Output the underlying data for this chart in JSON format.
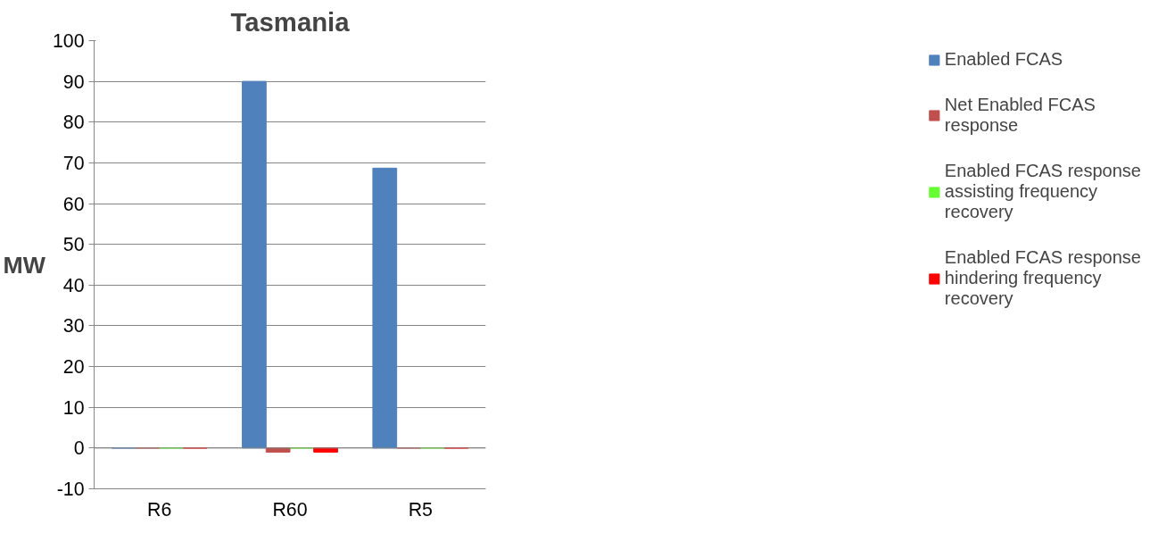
{
  "chart_data": {
    "type": "bar",
    "title": "Tasmania",
    "ylabel": "MW",
    "categories": [
      "R6",
      "R60",
      "R5"
    ],
    "series": [
      {
        "name": "Enabled FCAS",
        "color": "#4f81bd",
        "values": [
          0,
          90,
          68.7
        ]
      },
      {
        "name": "Net Enabled FCAS response",
        "color": "#c0504d",
        "values": [
          0,
          -1,
          0
        ]
      },
      {
        "name": "Enabled FCAS response assisting frequency recovery",
        "color": "#66ff33",
        "values": [
          0,
          0,
          0
        ]
      },
      {
        "name": "Enabled FCAS response hindering frequency recovery",
        "color": "#ff0000",
        "values": [
          0,
          -1,
          0
        ]
      }
    ],
    "ylim": [
      -10,
      100
    ],
    "yticks": [
      -10,
      0,
      10,
      20,
      30,
      40,
      50,
      60,
      70,
      80,
      90,
      100
    ],
    "grid": "y",
    "legend": "right"
  }
}
